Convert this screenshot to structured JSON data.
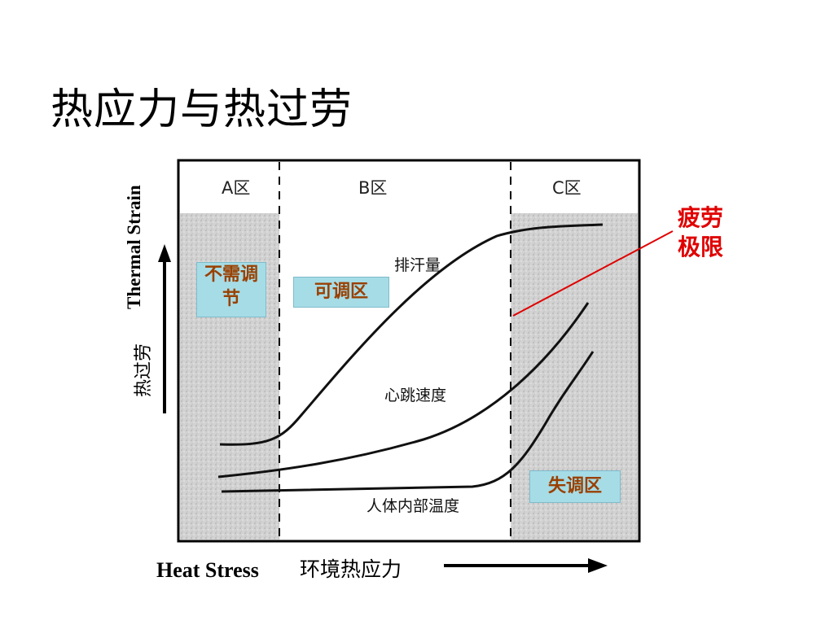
{
  "slide": {
    "title": "热应力与热过劳"
  },
  "axes": {
    "y_label_en": "Thermal Strain",
    "y_label_cn": "热过劳",
    "x_label_en": "Heat Stress",
    "x_label_cn": "环境热应力"
  },
  "zones": {
    "a_label": "A区",
    "b_label": "B区",
    "c_label": "C区"
  },
  "regions": {
    "no_regulation": "不需调节",
    "adjustable": "可调区",
    "dysregulation": "失调区"
  },
  "curves": {
    "sweat": "排汗量",
    "heart_rate": "心跳速度",
    "core_temp": "人体内部温度"
  },
  "annotation": {
    "fatigue_limit": "疲劳极限"
  },
  "colors": {
    "shaded_zone": "#cfcfcf",
    "label_box": "#a6dce6",
    "box_text": "#9a4000",
    "annotation": "#e00000"
  }
}
